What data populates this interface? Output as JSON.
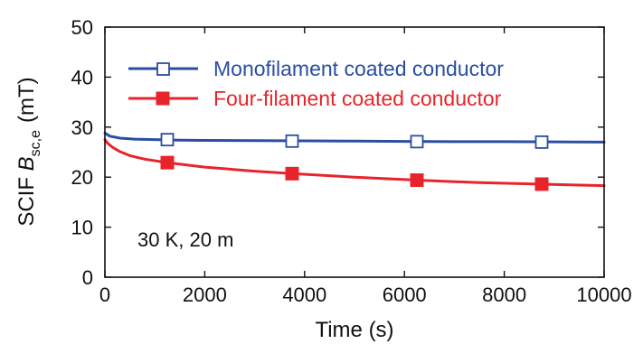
{
  "chart_data": {
    "type": "line",
    "xlabel": "Time (s)",
    "ylabel_prefix": "SCIF ",
    "ylabel_symbol": "B",
    "ylabel_subscript": "sc,e",
    "ylabel_unit": "(mT)",
    "xlim": [
      0,
      10000
    ],
    "ylim": [
      0,
      50
    ],
    "xticks": [
      0,
      2000,
      4000,
      6000,
      8000,
      10000
    ],
    "yticks": [
      0,
      10,
      20,
      30,
      40,
      50
    ],
    "grid": false,
    "legend_position": "top",
    "annotation": "30 K, 20 m",
    "series": [
      {
        "name": "Monofilament coated conductor",
        "color": "#2a4ea2",
        "marker": "open-square",
        "line": {
          "x": [
            0,
            100,
            300,
            600,
            1000,
            1500,
            2000,
            3000,
            4000,
            5000,
            6000,
            7000,
            8000,
            9000,
            10000
          ],
          "y": [
            28.8,
            28.2,
            27.8,
            27.6,
            27.5,
            27.4,
            27.35,
            27.3,
            27.25,
            27.2,
            27.15,
            27.1,
            27.1,
            27.05,
            27.0
          ]
        },
        "markers": {
          "x": [
            1250,
            3750,
            6250,
            8750
          ],
          "y": [
            27.5,
            27.2,
            27.1,
            27.0
          ]
        }
      },
      {
        "name": "Four-filament coated conductor",
        "color": "#e8242b",
        "marker": "filled-square",
        "line": {
          "x": [
            0,
            50,
            150,
            300,
            500,
            800,
            1250,
            2000,
            3000,
            3750,
            5000,
            6250,
            7500,
            8750,
            10000
          ],
          "y": [
            27.5,
            26.8,
            26.0,
            25.1,
            24.3,
            23.6,
            22.9,
            22.0,
            21.2,
            20.7,
            20.0,
            19.4,
            18.9,
            18.6,
            18.3
          ]
        },
        "markers": {
          "x": [
            1250,
            3750,
            6250,
            8750
          ],
          "y": [
            22.9,
            20.7,
            19.4,
            18.6
          ]
        }
      }
    ]
  }
}
